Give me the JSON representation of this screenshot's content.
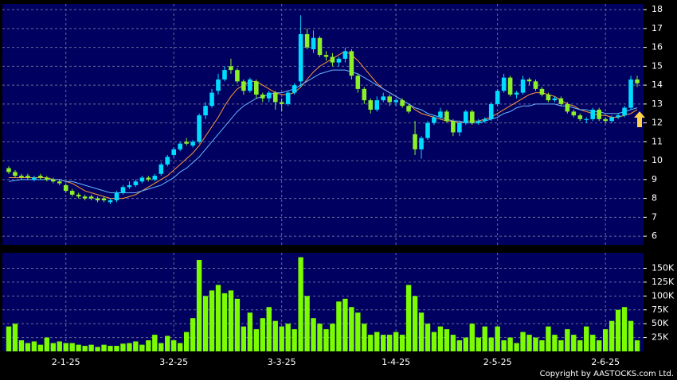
{
  "chart_data": {
    "type": "candlestick",
    "categories": [
      null,
      null,
      null,
      null,
      null,
      null,
      null,
      null,
      null,
      "2-1-25",
      null,
      null,
      null,
      null,
      null,
      null,
      null,
      null,
      null,
      null,
      null,
      null,
      null,
      null,
      null,
      null,
      "3-2-25",
      null,
      null,
      null,
      null,
      null,
      null,
      null,
      null,
      null,
      null,
      null,
      null,
      null,
      null,
      null,
      null,
      "3-3-25",
      null,
      null,
      null,
      null,
      null,
      null,
      null,
      null,
      null,
      null,
      null,
      null,
      null,
      null,
      null,
      null,
      null,
      "1-4-25",
      null,
      null,
      null,
      null,
      null,
      null,
      null,
      null,
      null,
      null,
      null,
      null,
      null,
      null,
      null,
      "2-5-25",
      null,
      null,
      null,
      null,
      null,
      null,
      null,
      null,
      null,
      null,
      null,
      null,
      null,
      null,
      null,
      null,
      "2-6-25",
      null,
      null,
      null,
      null,
      null
    ],
    "open": [
      9.6,
      9.4,
      9.2,
      9.2,
      9.0,
      9.2,
      9.1,
      9.0,
      8.9,
      8.7,
      8.4,
      8.2,
      8.1,
      8.1,
      8.0,
      8.0,
      7.8,
      7.9,
      8.3,
      8.6,
      8.7,
      8.9,
      9.1,
      9.0,
      9.3,
      9.8,
      10.3,
      10.6,
      11.0,
      10.8,
      11.0,
      12.4,
      12.9,
      13.7,
      14.3,
      15.0,
      14.8,
      14.2,
      13.7,
      14.2,
      13.5,
      13.3,
      13.6,
      13.1,
      13.0,
      13.6,
      14.2,
      16.7,
      15.9,
      16.5,
      15.6,
      15.5,
      15.2,
      15.4,
      15.8,
      14.5,
      13.8,
      13.2,
      12.7,
      13.2,
      13.4,
      13.1,
      13.2,
      12.9,
      11.4,
      10.6,
      11.2,
      12.0,
      12.3,
      12.6,
      12.1,
      11.5,
      12.0,
      12.6,
      12.0,
      12.1,
      12.2,
      13.0,
      13.7,
      14.4,
      13.5,
      13.6,
      14.3,
      14.2,
      13.8,
      13.5,
      13.2,
      13.3,
      13.0,
      12.6,
      12.4,
      12.2,
      12.2,
      12.7,
      12.2,
      12.1,
      12.3,
      12.4,
      12.8,
      14.3
    ],
    "high": [
      9.7,
      9.5,
      9.3,
      9.3,
      9.2,
      9.3,
      9.2,
      9.1,
      9.0,
      8.8,
      8.5,
      8.3,
      8.2,
      8.2,
      8.1,
      8.1,
      8.0,
      8.4,
      8.7,
      8.9,
      9.0,
      9.2,
      9.2,
      9.3,
      9.9,
      10.3,
      10.7,
      11.0,
      11.2,
      11.1,
      12.5,
      13.1,
      13.8,
      14.6,
      15.0,
      15.4,
      14.9,
      14.3,
      14.4,
      14.3,
      13.6,
      13.7,
      13.7,
      13.3,
      13.7,
      14.1,
      17.7,
      17.0,
      16.9,
      16.6,
      15.8,
      15.7,
      15.5,
      16.0,
      15.9,
      14.6,
      13.9,
      13.3,
      13.4,
      13.6,
      13.5,
      13.3,
      13.3,
      13.0,
      12.1,
      11.3,
      12.1,
      12.4,
      12.8,
      12.7,
      12.2,
      12.1,
      12.7,
      12.7,
      12.2,
      12.3,
      13.1,
      13.8,
      14.6,
      14.5,
      13.7,
      14.5,
      14.4,
      14.3,
      13.9,
      13.6,
      13.4,
      13.4,
      13.1,
      12.7,
      12.5,
      12.3,
      12.8,
      12.8,
      12.3,
      12.4,
      12.5,
      12.9,
      14.5,
      14.5
    ],
    "low": [
      9.3,
      9.1,
      9.0,
      9.0,
      8.9,
      9.0,
      8.9,
      8.8,
      8.7,
      8.3,
      8.1,
      8.0,
      7.9,
      7.9,
      7.8,
      7.8,
      7.7,
      7.8,
      8.2,
      8.5,
      8.6,
      8.8,
      8.9,
      8.9,
      9.2,
      9.7,
      10.2,
      10.5,
      10.8,
      10.7,
      10.9,
      12.2,
      12.8,
      13.5,
      14.2,
      14.6,
      14.1,
      13.5,
      13.6,
      13.3,
      13.1,
      13.1,
      12.7,
      12.6,
      12.9,
      13.5,
      13.9,
      15.9,
      15.7,
      15.5,
      15.3,
      15.0,
      15.0,
      15.2,
      14.3,
      13.6,
      13.0,
      12.5,
      12.6,
      13.1,
      12.9,
      12.9,
      12.8,
      12.5,
      10.3,
      10.1,
      11.1,
      11.9,
      12.2,
      12.0,
      11.3,
      11.3,
      11.9,
      11.9,
      11.9,
      12.0,
      12.1,
      12.9,
      13.6,
      13.4,
      13.3,
      13.5,
      14.0,
      13.7,
      13.4,
      13.1,
      13.1,
      12.9,
      12.5,
      12.3,
      12.1,
      12.0,
      12.1,
      12.1,
      12.0,
      12.0,
      12.2,
      12.3,
      12.7,
      13.9
    ],
    "close": [
      9.4,
      9.2,
      9.1,
      9.1,
      9.1,
      9.1,
      9.0,
      8.9,
      8.8,
      8.4,
      8.2,
      8.1,
      8.0,
      8.0,
      7.9,
      7.9,
      7.9,
      8.3,
      8.6,
      8.7,
      8.9,
      9.1,
      9.0,
      9.2,
      9.8,
      10.2,
      10.6,
      10.9,
      10.9,
      11.0,
      12.4,
      12.9,
      13.6,
      14.3,
      14.8,
      14.8,
      14.2,
      13.7,
      14.3,
      13.5,
      13.3,
      13.6,
      13.1,
      13.0,
      13.6,
      14.0,
      16.7,
      16.0,
      16.5,
      15.6,
      15.5,
      15.2,
      15.4,
      15.8,
      14.5,
      13.8,
      13.2,
      12.7,
      13.2,
      13.4,
      13.1,
      13.2,
      12.9,
      12.6,
      10.6,
      11.2,
      12.0,
      12.3,
      12.6,
      12.1,
      11.5,
      12.0,
      12.6,
      12.0,
      12.1,
      12.2,
      13.0,
      13.7,
      14.4,
      13.5,
      13.6,
      14.3,
      14.2,
      13.8,
      13.5,
      13.2,
      13.3,
      13.0,
      12.6,
      12.4,
      12.2,
      12.2,
      12.7,
      12.2,
      12.1,
      12.3,
      12.4,
      12.8,
      14.3,
      14.1
    ],
    "up_color": "#00dcff",
    "down_color": "#8cf028",
    "moving_averages": [
      {
        "color": "#ff9933",
        "values": [
          9.1,
          9.1,
          9.1,
          9.1,
          9.1,
          9.1,
          9.1,
          9.0,
          9.0,
          8.9,
          8.8,
          8.6,
          8.4,
          8.3,
          8.2,
          8.1,
          8.0,
          8.0,
          8.0,
          8.1,
          8.2,
          8.4,
          8.6,
          8.8,
          9.0,
          9.2,
          9.5,
          9.8,
          10.1,
          10.4,
          10.8,
          11.3,
          11.8,
          12.3,
          12.9,
          13.4,
          13.8,
          14.0,
          14.2,
          14.2,
          14.0,
          13.8,
          13.6,
          13.5,
          13.5,
          13.6,
          13.9,
          14.3,
          14.7,
          15.0,
          15.2,
          15.4,
          15.6,
          15.8,
          15.6,
          15.3,
          14.9,
          14.5,
          14.1,
          13.8,
          13.6,
          13.4,
          13.2,
          13.0,
          12.7,
          12.5,
          12.4,
          12.3,
          12.2,
          12.1,
          12.1,
          12.0,
          12.1,
          12.1,
          12.1,
          12.2,
          12.3,
          12.5,
          12.7,
          12.9,
          13.1,
          13.3,
          13.5,
          13.6,
          13.6,
          13.5,
          13.4,
          13.2,
          13.0,
          12.9,
          12.7,
          12.6,
          12.5,
          12.4,
          12.4,
          12.3,
          12.3,
          12.4,
          12.5,
          12.7
        ]
      },
      {
        "color": "#66b3ff",
        "values": [
          8.9,
          8.95,
          9.0,
          9.0,
          9.0,
          9.0,
          9.0,
          9.0,
          9.0,
          8.9,
          8.9,
          8.8,
          8.7,
          8.6,
          8.5,
          8.4,
          8.3,
          8.3,
          8.3,
          8.3,
          8.3,
          8.4,
          8.5,
          8.6,
          8.7,
          8.9,
          9.1,
          9.4,
          9.6,
          9.9,
          10.2,
          10.6,
          11.0,
          11.4,
          11.8,
          12.2,
          12.6,
          12.9,
          13.1,
          13.3,
          13.4,
          13.5,
          13.6,
          13.6,
          13.7,
          13.8,
          14.0,
          14.2,
          14.4,
          14.6,
          14.7,
          14.8,
          14.8,
          14.8,
          14.7,
          14.6,
          14.4,
          14.2,
          14.0,
          13.8,
          13.6,
          13.4,
          13.2,
          13.0,
          12.8,
          12.7,
          12.5,
          12.4,
          12.3,
          12.2,
          12.1,
          12.1,
          12.0,
          12.0,
          12.0,
          12.1,
          12.2,
          12.3,
          12.5,
          12.6,
          12.8,
          12.9,
          12.9,
          13.0,
          13.0,
          13.0,
          13.0,
          12.9,
          12.9,
          12.8,
          12.7,
          12.7,
          12.6,
          12.6,
          12.5,
          12.5,
          12.5,
          12.6,
          12.7,
          12.8
        ]
      }
    ],
    "ylim": [
      5.54,
      18.3
    ],
    "yticks": [
      6,
      7,
      8,
      9,
      10,
      11,
      12,
      13,
      14,
      15,
      16,
      17,
      18
    ],
    "volume": [
      45000,
      50000,
      20000,
      15000,
      18000,
      12000,
      25000,
      15000,
      18000,
      15000,
      15000,
      12000,
      10000,
      12000,
      8000,
      12000,
      10000,
      10000,
      14000,
      15000,
      18000,
      12000,
      20000,
      30000,
      15000,
      28000,
      20000,
      15000,
      35000,
      60000,
      165000,
      100000,
      110000,
      120000,
      105000,
      110000,
      95000,
      45000,
      70000,
      40000,
      60000,
      80000,
      55000,
      45000,
      50000,
      40000,
      170000,
      100000,
      60000,
      50000,
      40000,
      50000,
      90000,
      95000,
      80000,
      70000,
      50000,
      30000,
      35000,
      30000,
      30000,
      35000,
      30000,
      120000,
      100000,
      70000,
      50000,
      35000,
      45000,
      40000,
      30000,
      20000,
      25000,
      50000,
      25000,
      45000,
      25000,
      45000,
      20000,
      25000,
      15000,
      35000,
      30000,
      25000,
      20000,
      45000,
      30000,
      20000,
      40000,
      30000,
      20000,
      45000,
      30000,
      20000,
      40000,
      55000,
      75000,
      80000,
      55000,
      20000
    ],
    "volume_color": "#7cfc00",
    "volume_lim": [
      0,
      178000
    ],
    "volume_ticks": [
      {
        "value": 25000,
        "label": "25K"
      },
      {
        "value": 50000,
        "label": "50K"
      },
      {
        "value": 75000,
        "label": "75K"
      },
      {
        "value": 100000,
        "label": "100K"
      },
      {
        "value": 125000,
        "label": "125K"
      },
      {
        "value": 150000,
        "label": "150K"
      }
    ],
    "grid": true,
    "copyright": "Copyright by AASTOCKS.com Ltd."
  }
}
